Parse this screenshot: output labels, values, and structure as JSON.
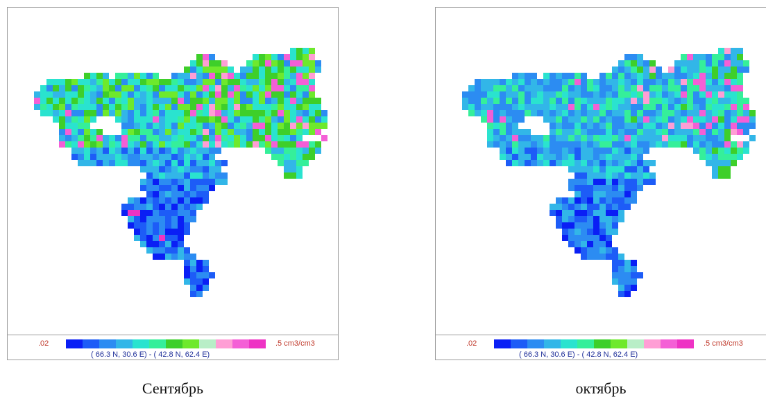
{
  "legend": {
    "min_label": ".02",
    "max_label": ".5 cm3/cm3",
    "colors": [
      "#0a1ff5",
      "#1d5cf7",
      "#2c8cf2",
      "#32b6e8",
      "#2ae3cf",
      "#35ef9a",
      "#3ecf2a",
      "#6ee92c",
      "#b8eec7",
      "#ff9ed5",
      "#f45fd6",
      "#ee33c4"
    ],
    "coords": "( 66.3 N,  30.6 E) - ( 42.8 N,  62.4 E)"
  },
  "maps": [
    {
      "caption": "Сентябрь"
    },
    {
      "caption": "октябрь"
    }
  ]
}
